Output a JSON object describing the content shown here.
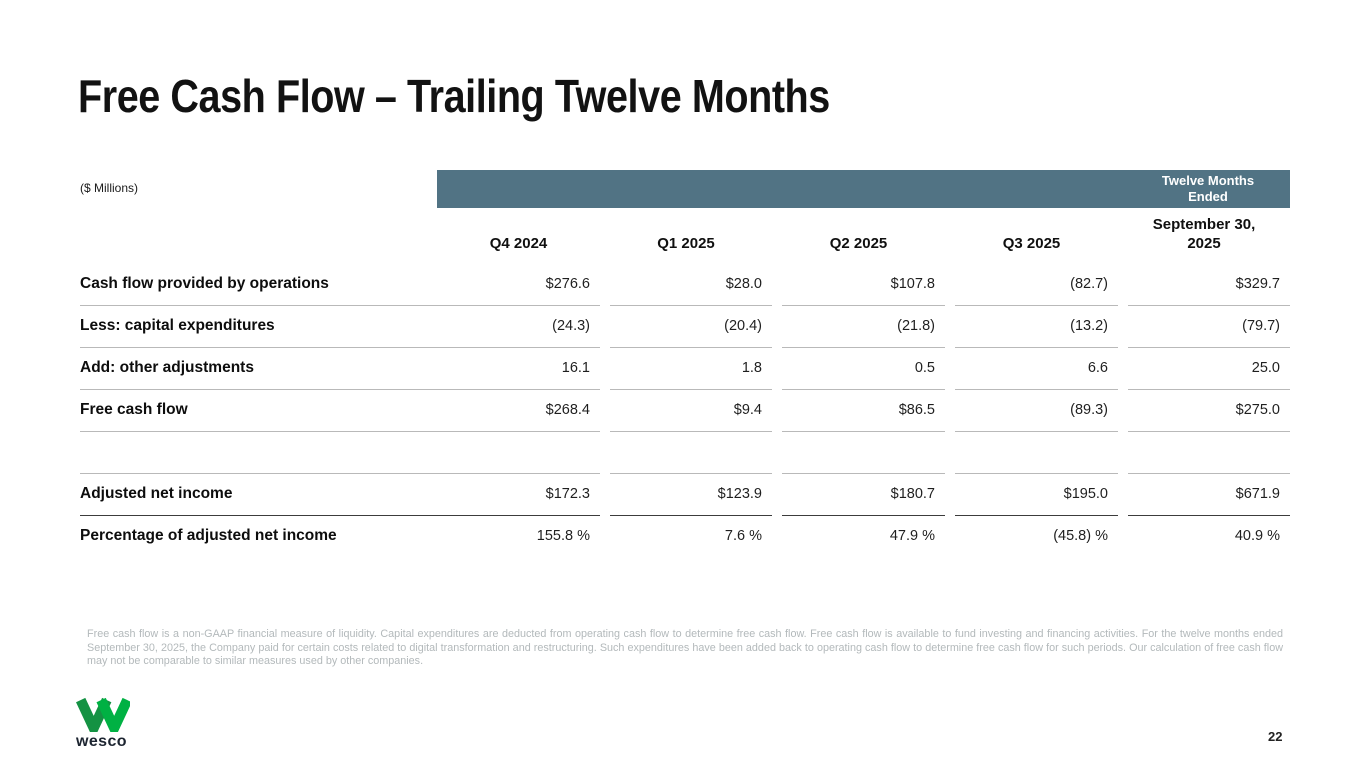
{
  "slide": {
    "title": "Free Cash Flow – Trailing Twelve Months",
    "page_number": "22",
    "logo_text": "wesco"
  },
  "table": {
    "units_label": "($ Millions)",
    "banner": "Twelve Months\nEnded",
    "columns": [
      "Q4 2024",
      "Q1 2025",
      "Q2 2025",
      "Q3 2025",
      "September 30,\n2025"
    ],
    "rows": [
      {
        "label": "Cash flow provided by operations",
        "values": [
          "$276.6",
          "$28.0",
          "$107.8",
          "(82.7)",
          "$329.7"
        ],
        "divider": "light"
      },
      {
        "label": "Less: capital expenditures",
        "values": [
          "(24.3)",
          "(20.4)",
          "(21.8)",
          "(13.2)",
          "(79.7)"
        ],
        "divider": "light"
      },
      {
        "label": "Add: other adjustments",
        "values": [
          "16.1",
          "1.8",
          "0.5",
          "6.6",
          "25.0"
        ],
        "divider": "light"
      },
      {
        "label": "Free cash flow",
        "values": [
          "$268.4",
          "$9.4",
          "$86.5",
          "(89.3)",
          "$275.0"
        ],
        "divider": "light"
      },
      {
        "label": "",
        "values": [
          "",
          "",
          "",
          "",
          ""
        ],
        "divider": "light",
        "spacer": true
      },
      {
        "label": "Adjusted net income",
        "values": [
          "$172.3",
          "$123.9",
          "$180.7",
          "$195.0",
          "$671.9"
        ],
        "divider": "dark"
      },
      {
        "label": "Percentage of adjusted net income",
        "values": [
          "155.8 %",
          "7.6 %",
          "47.9 %",
          "(45.8) %",
          "40.9 %"
        ],
        "divider": "none"
      }
    ]
  },
  "footnote": "Free cash flow is a non-GAAP financial measure of liquidity. Capital expenditures are deducted from operating cash flow to determine free cash flow. Free cash flow is available to fund investing and financing activities. For the twelve months ended September 30, 2025, the Company paid for certain costs related to digital transformation and restructuring. Such expenditures have been added back to operating cash flow to determine free cash flow for such periods. Our calculation of free cash flow may not be comparable to similar measures used by other companies.",
  "colors": {
    "banner_bg": "#517384",
    "banner_text": "#ffffff",
    "row_line": "#b9b9b9",
    "row_line_dark": "#3c3c3c",
    "footnote_text": "#b3b9bb",
    "logo_green_dark": "#149243",
    "logo_green_bright": "#00b143"
  }
}
